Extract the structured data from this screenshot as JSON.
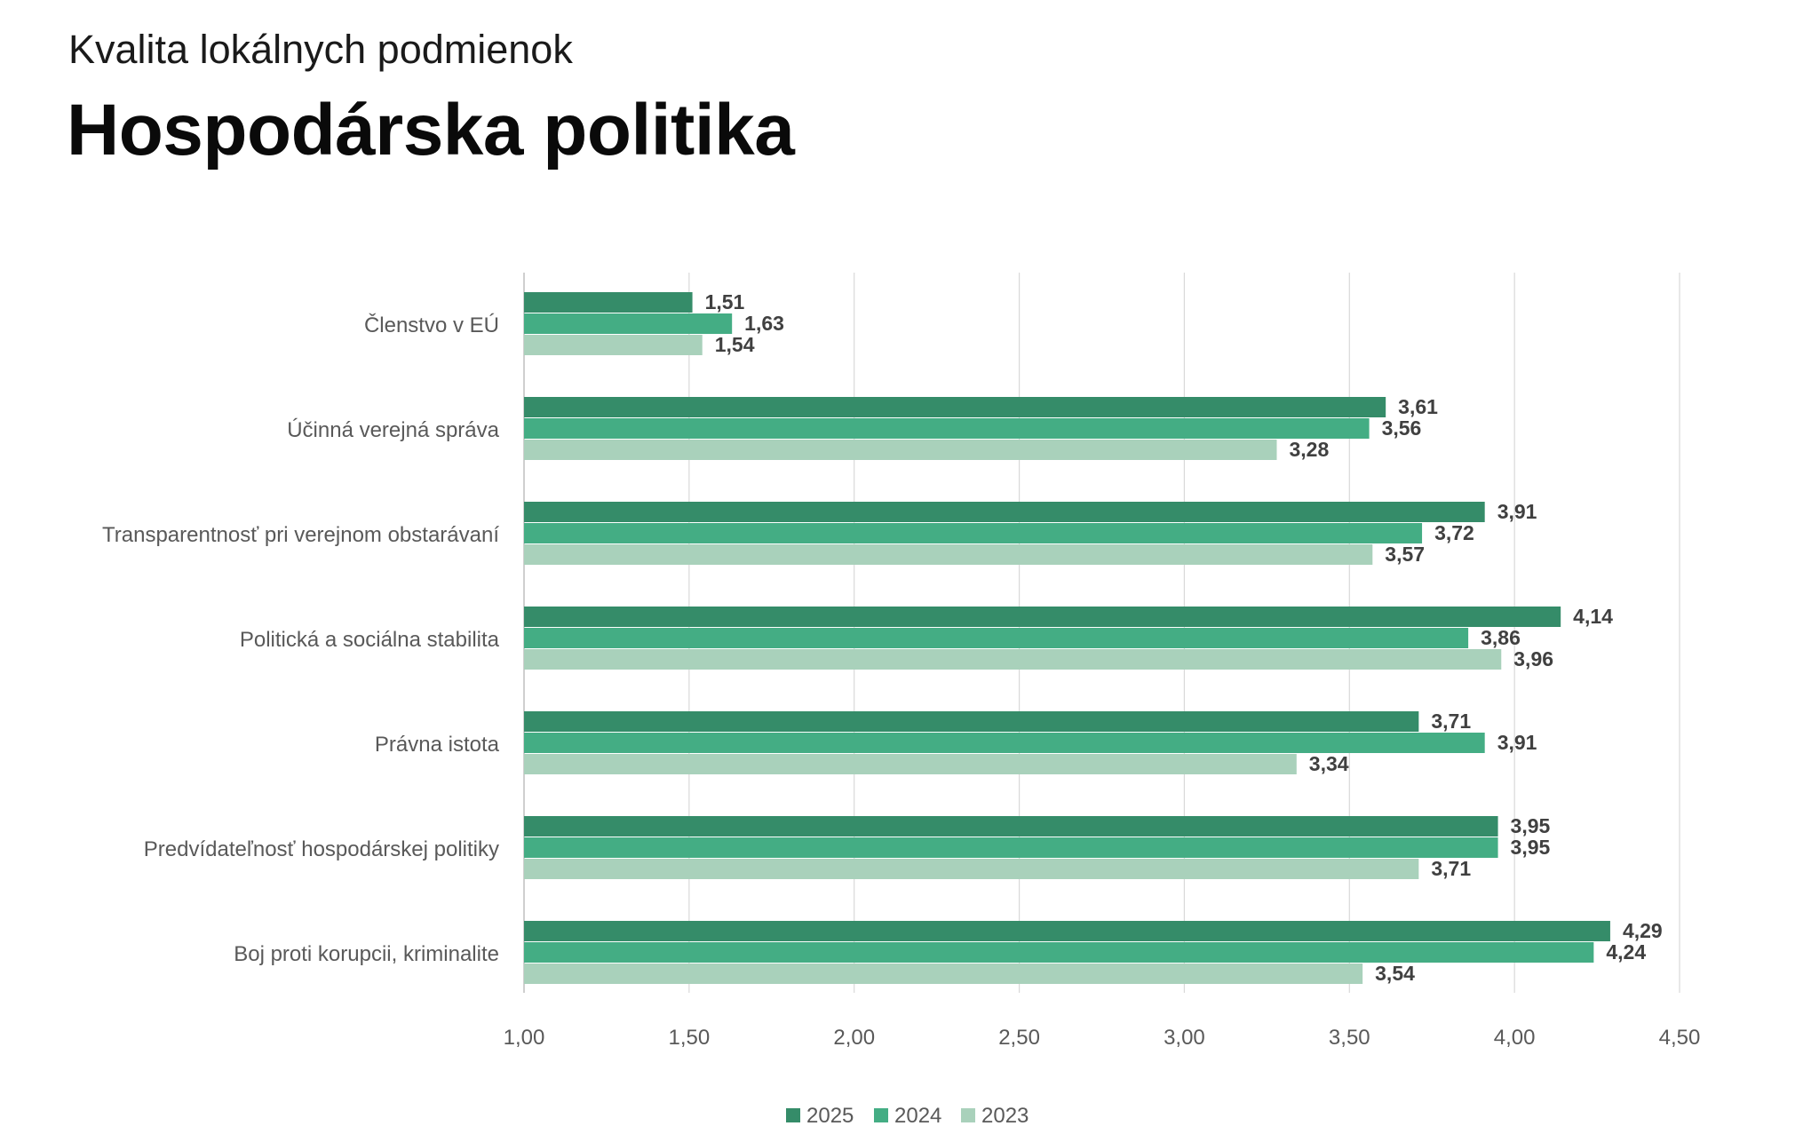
{
  "header": {
    "subtitle": "Kvalita lokálnych podmienok",
    "title": "Hospodárska politika"
  },
  "chart_data": {
    "type": "bar",
    "orientation": "horizontal",
    "title": "Hospodárska politika",
    "subtitle": "Kvalita lokálnych podmienok",
    "categories": [
      "Členstvo v EÚ",
      "Účinná verejná správa",
      "Transparentnosť pri verejnom obstarávaní",
      "Politická a sociálna stabilita",
      "Právna istota",
      "Predvídateľnosť hospodárskej politiky",
      "Boj proti korupcii, kriminalite"
    ],
    "series": [
      {
        "name": "2025",
        "color": "#358C69",
        "values": [
          1.51,
          3.61,
          3.91,
          4.14,
          3.71,
          3.95,
          4.29
        ],
        "labels": [
          "1,51",
          "3,61",
          "3,91",
          "4,14",
          "3,71",
          "3,95",
          "4,29"
        ]
      },
      {
        "name": "2024",
        "color": "#44AD84",
        "values": [
          1.63,
          3.56,
          3.72,
          3.86,
          3.91,
          3.95,
          4.24
        ],
        "labels": [
          "1,63",
          "3,56",
          "3,72",
          "3,86",
          "3,91",
          "3,95",
          "4,24"
        ]
      },
      {
        "name": "2023",
        "color": "#A9D1BB",
        "values": [
          1.54,
          3.28,
          3.57,
          3.96,
          3.34,
          3.71,
          3.54
        ],
        "labels": [
          "1,54",
          "3,28",
          "3,57",
          "3,96",
          "3,34",
          "3,71",
          "3,54"
        ]
      }
    ],
    "xlim": [
      1.0,
      4.5
    ],
    "ticks": [
      1.0,
      1.5,
      2.0,
      2.5,
      3.0,
      3.5,
      4.0,
      4.5
    ],
    "tick_labels": [
      "1,00",
      "1,50",
      "2,00",
      "2,50",
      "3,00",
      "3,50",
      "4,00",
      "4,50"
    ],
    "grid": true,
    "legend_position": "bottom"
  }
}
